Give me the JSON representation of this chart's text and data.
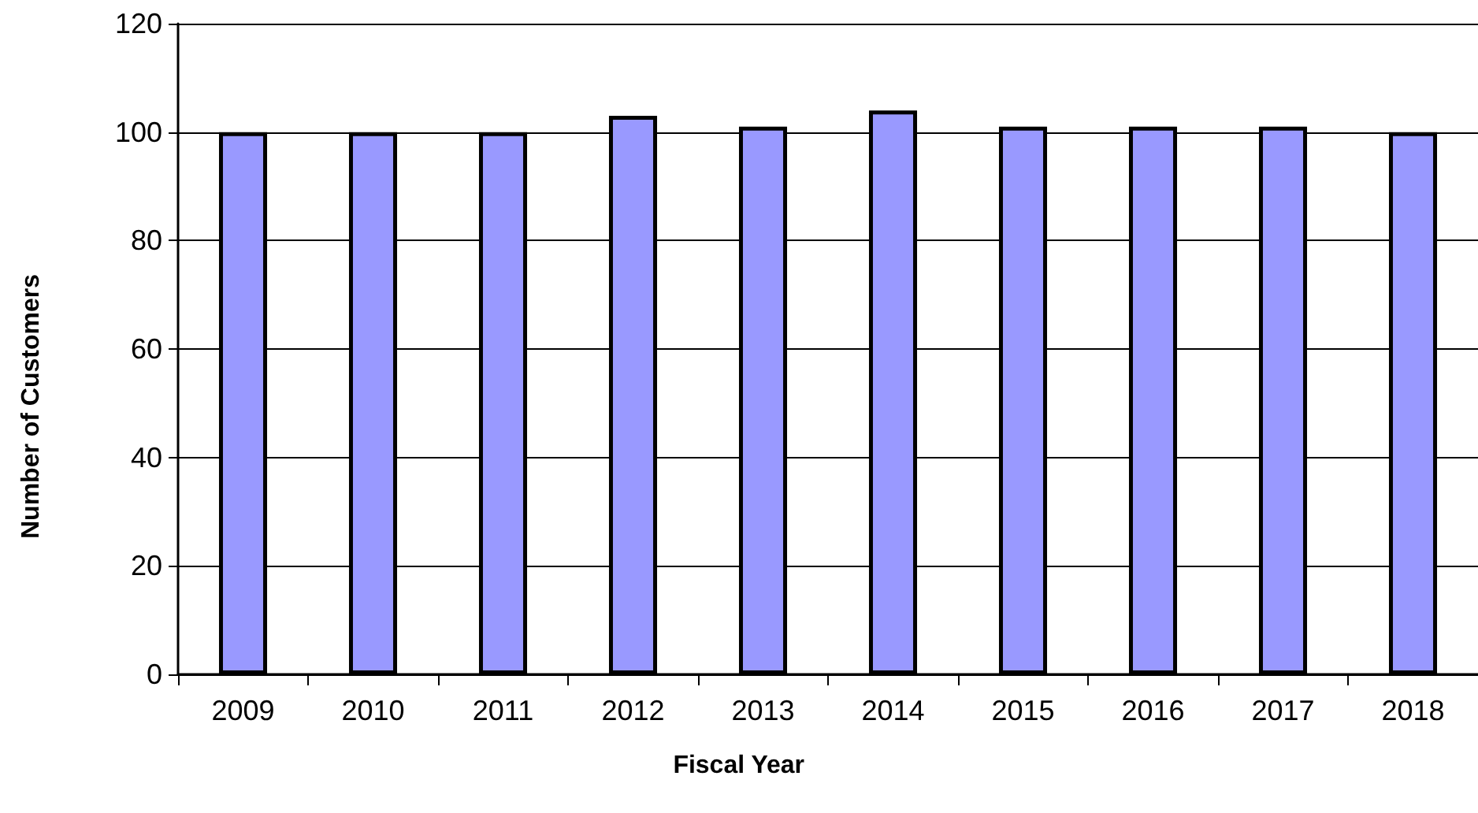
{
  "chart_data": {
    "type": "bar",
    "xlabel": "Fiscal Year",
    "ylabel": "Number of Customers",
    "categories": [
      "2009",
      "2010",
      "2011",
      "2012",
      "2013",
      "2014",
      "2015",
      "2016",
      "2017",
      "2018"
    ],
    "values": [
      100,
      100,
      100,
      103,
      101,
      104,
      101,
      101,
      101,
      100
    ],
    "color": "#9999ff",
    "ylim": [
      0,
      120
    ],
    "yticks": [
      0,
      20,
      40,
      60,
      80,
      100,
      120
    ],
    "grid": "y"
  }
}
